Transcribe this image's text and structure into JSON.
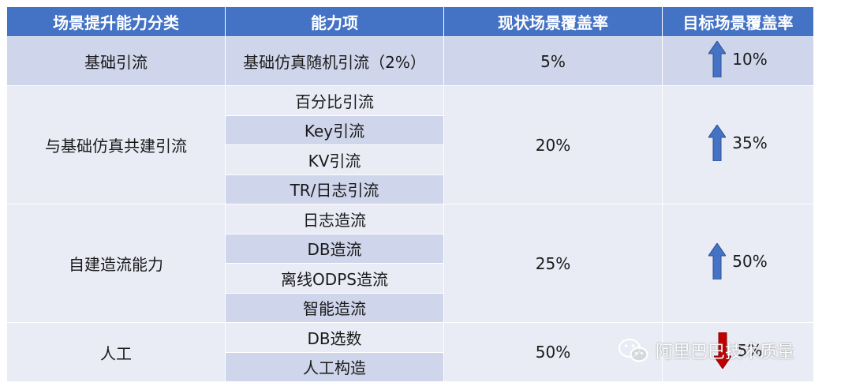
{
  "headers": [
    "场景提升能力分类",
    "能力项",
    "现状场景覆盖率",
    "目标场景覆盖率"
  ],
  "groups": [
    {
      "category": "基础引流",
      "items": [
        "基础仿真随机引流（2%）"
      ],
      "current": "5%",
      "target": "10%",
      "direction": "up"
    },
    {
      "category": "与基础仿真共建引流",
      "items": [
        "百分比引流",
        "Key引流",
        "KV引流",
        "TR/日志引流"
      ],
      "current": "20%",
      "target": "35%",
      "direction": "up"
    },
    {
      "category": "自建造流能力",
      "items": [
        "日志造流",
        "DB造流",
        "离线ODPS造流",
        "智能造流"
      ],
      "current": "25%",
      "target": "50%",
      "direction": "up"
    },
    {
      "category": "人工",
      "items": [
        "DB选数",
        "人工构造"
      ],
      "current": "50%",
      "target": "5%",
      "direction": "down"
    }
  ],
  "colors": {
    "header": "#4472c4",
    "row_dark": "#cfd5ea",
    "row_light": "#e9ebf5",
    "arrow_up": "#4472c4",
    "arrow_down": "#c00000"
  },
  "icons": {
    "arrow_up": "arrow-up-icon",
    "arrow_down": "arrow-down-icon",
    "watermark": "wechat-icon"
  },
  "watermark": {
    "text": "阿里巴巴技术质量"
  }
}
